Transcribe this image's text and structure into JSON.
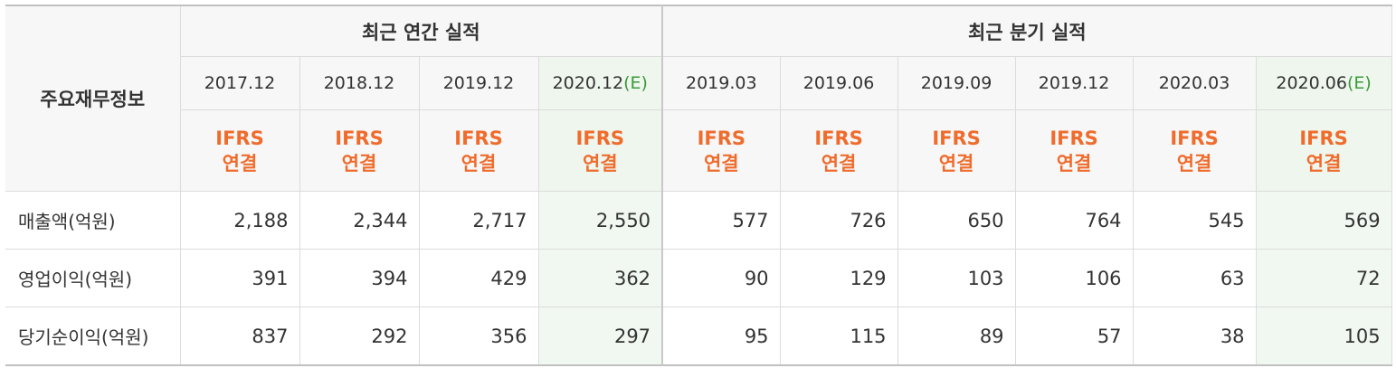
{
  "header": {
    "row_label": "주요재무정보",
    "annual_group": "최근 연간 실적",
    "quarter_group": "최근 분기 실적"
  },
  "periods": [
    {
      "label": "2017.12",
      "est_mark": "",
      "std": "IFRS",
      "basis": "연결",
      "estimate": false
    },
    {
      "label": "2018.12",
      "est_mark": "",
      "std": "IFRS",
      "basis": "연결",
      "estimate": false
    },
    {
      "label": "2019.12",
      "est_mark": "",
      "std": "IFRS",
      "basis": "연결",
      "estimate": false
    },
    {
      "label": "2020.12",
      "est_mark": "(E)",
      "std": "IFRS",
      "basis": "연결",
      "estimate": true
    },
    {
      "label": "2019.03",
      "est_mark": "",
      "std": "IFRS",
      "basis": "연결",
      "estimate": false
    },
    {
      "label": "2019.06",
      "est_mark": "",
      "std": "IFRS",
      "basis": "연결",
      "estimate": false
    },
    {
      "label": "2019.09",
      "est_mark": "",
      "std": "IFRS",
      "basis": "연결",
      "estimate": false
    },
    {
      "label": "2019.12",
      "est_mark": "",
      "std": "IFRS",
      "basis": "연결",
      "estimate": false
    },
    {
      "label": "2020.03",
      "est_mark": "",
      "std": "IFRS",
      "basis": "연결",
      "estimate": false
    },
    {
      "label": "2020.06",
      "est_mark": "(E)",
      "std": "IFRS",
      "basis": "연결",
      "estimate": true
    }
  ],
  "rows": [
    {
      "label": "매출액(억원)",
      "values": [
        "2,188",
        "2,344",
        "2,717",
        "2,550",
        "577",
        "726",
        "650",
        "764",
        "545",
        "569"
      ]
    },
    {
      "label": "영업이익(억원)",
      "values": [
        "391",
        "394",
        "429",
        "362",
        "90",
        "129",
        "103",
        "106",
        "63",
        "72"
      ]
    },
    {
      "label": "당기순이익(억원)",
      "values": [
        "837",
        "292",
        "356",
        "297",
        "95",
        "115",
        "89",
        "57",
        "38",
        "105"
      ]
    }
  ],
  "colors": {
    "accent_orange": "#ef6c2c",
    "estimate_green": "#3a9a3a",
    "estimate_bg": "#f1f8f1",
    "header_bg": "#f7f7f7"
  }
}
